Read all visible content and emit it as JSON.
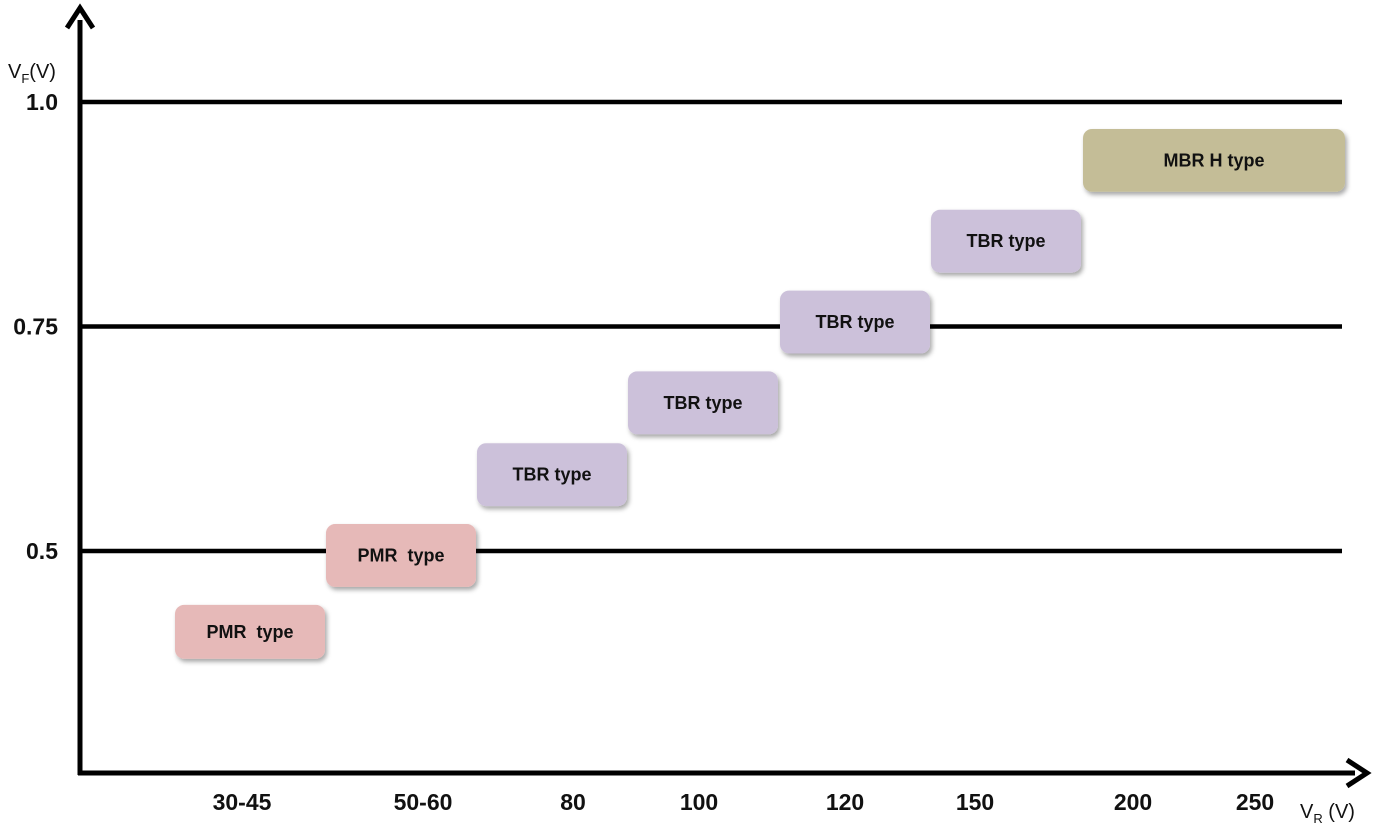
{
  "chart_data": {
    "type": "bar",
    "title": "",
    "xlabel_parts": {
      "main": "V",
      "sub": "R",
      "unit": " (V)"
    },
    "ylabel_parts": {
      "main": "V",
      "sub": "F",
      "unit": "(V)"
    },
    "categories": [
      "30-45",
      "50-60",
      "80",
      "100",
      "120",
      "150",
      "200",
      "250"
    ],
    "y_ticks": [
      {
        "value": 0.5,
        "label": "0.5"
      },
      {
        "value": 0.75,
        "label": "0.75"
      },
      {
        "value": 1.0,
        "label": "1.0"
      }
    ],
    "ylim": [
      0.18,
      1.0
    ],
    "grid": "horizontal lines at y ticks",
    "series": [
      {
        "name": "PMR type",
        "color": "#e6b9b8"
      },
      {
        "name": "TBR type",
        "color": "#ccc1da"
      },
      {
        "name": "MBR H type",
        "color": "#c4bd97"
      }
    ],
    "boxes": [
      {
        "label": "PMR  type",
        "series": "PMR type",
        "vr_from": "30-45",
        "vr_to": "30-45",
        "vf_low": 0.38,
        "vf_high": 0.44
      },
      {
        "label": "PMR  type",
        "series": "PMR type",
        "vr_from": "50-60",
        "vr_to": "50-60",
        "vf_low": 0.46,
        "vf_high": 0.53
      },
      {
        "label": "TBR type",
        "series": "TBR type",
        "vr_from": "80",
        "vr_to": "80",
        "vf_low": 0.55,
        "vf_high": 0.62
      },
      {
        "label": "TBR type",
        "series": "TBR type",
        "vr_from": "100",
        "vr_to": "100",
        "vf_low": 0.63,
        "vf_high": 0.7
      },
      {
        "label": "TBR type",
        "series": "TBR type",
        "vr_from": "120",
        "vr_to": "120",
        "vf_low": 0.72,
        "vf_high": 0.79
      },
      {
        "label": "TBR type",
        "series": "TBR type",
        "vr_from": "150",
        "vr_to": "150",
        "vf_low": 0.81,
        "vf_high": 0.88
      },
      {
        "label": "MBR H type",
        "series": "MBR H type",
        "vr_from": "200",
        "vr_to": "250",
        "vf_low": 0.9,
        "vf_high": 0.97
      }
    ]
  }
}
